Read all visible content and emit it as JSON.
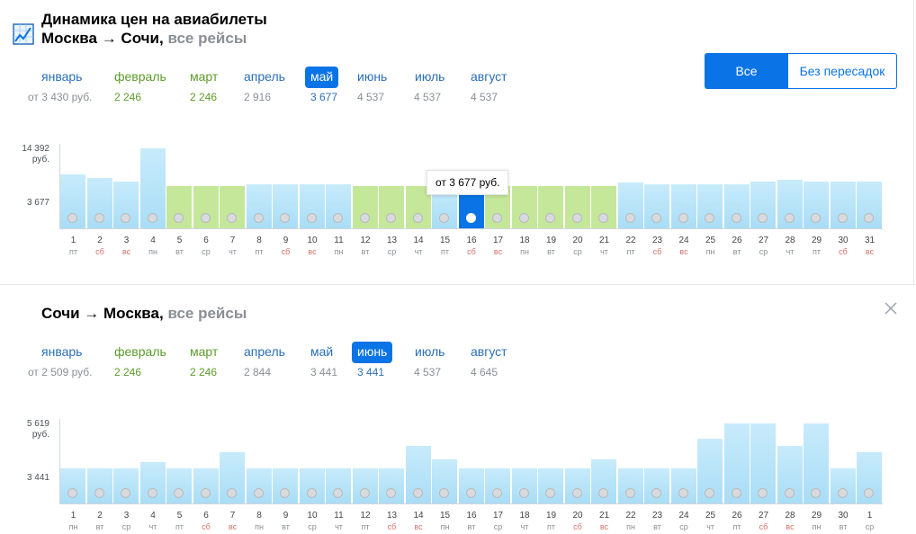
{
  "header": {
    "title": "Динамика цен на авиабилеты",
    "route1": "Москва → Сочи,",
    "route1_suffix": "все рейсы",
    "logo_icon": "chart-icon"
  },
  "filter": {
    "all_flights": "Все рейсы",
    "nonstop": "Без пересадок"
  },
  "section1": {
    "months": [
      {
        "label": "январь",
        "price": "от 3 430 руб.",
        "color": "blue",
        "price_color": "gray"
      },
      {
        "label": "февраль",
        "price": "2 246",
        "color": "green",
        "price_color": "green"
      },
      {
        "label": "март",
        "price": "2 246",
        "color": "green",
        "price_color": "green"
      },
      {
        "label": "апрель",
        "price": "2 916",
        "color": "blue",
        "price_color": "gray"
      },
      {
        "label": "май",
        "price": "3 677",
        "color": "sel",
        "price_color": "blue"
      },
      {
        "label": "июнь",
        "price": "4 537",
        "color": "blue",
        "price_color": "gray"
      },
      {
        "label": "июль",
        "price": "4 537",
        "color": "blue",
        "price_color": "gray"
      },
      {
        "label": "август",
        "price": "4 537",
        "color": "blue",
        "price_color": "gray"
      }
    ],
    "y_max_label": "14 392",
    "y_unit": "руб.",
    "y_min_label": "3 677",
    "tooltip": "от 3 677 руб."
  },
  "section2": {
    "route": "Сочи → Москва,",
    "route_suffix": "все рейсы",
    "close_icon": "close-icon",
    "months": [
      {
        "label": "январь",
        "price": "от 2 509 руб.",
        "color": "blue",
        "price_color": "gray"
      },
      {
        "label": "февраль",
        "price": "2 246",
        "color": "green",
        "price_color": "green"
      },
      {
        "label": "март",
        "price": "2 246",
        "color": "green",
        "price_color": "green"
      },
      {
        "label": "апрель",
        "price": "2 844",
        "color": "blue",
        "price_color": "gray"
      },
      {
        "label": "май",
        "price": "3 441",
        "color": "blue",
        "price_color": "gray"
      },
      {
        "label": "июнь",
        "price": "3 441",
        "color": "sel",
        "price_color": "blue"
      },
      {
        "label": "июль",
        "price": "4 537",
        "color": "blue",
        "price_color": "gray"
      },
      {
        "label": "август",
        "price": "4 645",
        "color": "blue",
        "price_color": "gray"
      }
    ],
    "y_max_label": "5 619",
    "y_unit": "руб.",
    "y_min_label": "3 441"
  },
  "chart_data": [
    {
      "type": "bar",
      "ylim": [
        3677,
        14392
      ],
      "selected_day": "16",
      "days": [
        "1",
        "2",
        "3",
        "4",
        "5",
        "6",
        "7",
        "8",
        "9",
        "10",
        "11",
        "12",
        "13",
        "14",
        "15",
        "16",
        "17",
        "18",
        "19",
        "20",
        "21",
        "22",
        "23",
        "24",
        "25",
        "26",
        "27",
        "28",
        "29",
        "30",
        "31"
      ],
      "weekdays": [
        "пт",
        "сб",
        "вс",
        "пн",
        "вт",
        "ср",
        "чт",
        "пт",
        "сб",
        "вс",
        "пн",
        "вт",
        "ср",
        "чт",
        "пт",
        "сб",
        "вс",
        "пн",
        "вт",
        "ср",
        "чт",
        "пт",
        "сб",
        "вс",
        "пн",
        "вт",
        "ср",
        "чт",
        "пт",
        "сб",
        "вс"
      ],
      "values": [
        9200,
        8500,
        7700,
        14392,
        6900,
        6900,
        6900,
        7200,
        7200,
        7200,
        7200,
        6900,
        6900,
        6900,
        7200,
        6900,
        6900,
        6900,
        6900,
        6900,
        6900,
        7600,
        7200,
        7200,
        7200,
        7200,
        7700,
        8200,
        7700,
        7700,
        7700
      ],
      "colors": [
        "blue",
        "blue",
        "blue",
        "blue",
        "green",
        "green",
        "green",
        "blue",
        "blue",
        "blue",
        "blue",
        "green",
        "green",
        "green",
        "blue",
        "sel",
        "green",
        "green",
        "green",
        "green",
        "green",
        "blue",
        "blue",
        "blue",
        "blue",
        "blue",
        "blue",
        "blue",
        "blue",
        "blue",
        "blue"
      ]
    },
    {
      "type": "bar",
      "ylim": [
        3441,
        5619
      ],
      "days": [
        "1",
        "2",
        "3",
        "4",
        "5",
        "6",
        "7",
        "8",
        "9",
        "10",
        "11",
        "12",
        "13",
        "14",
        "15",
        "16",
        "17",
        "18",
        "19",
        "20",
        "21",
        "22",
        "23",
        "24",
        "25",
        "26",
        "27",
        "28",
        "29",
        "30",
        "1"
      ],
      "weekdays": [
        "пн",
        "вт",
        "ср",
        "чт",
        "пт",
        "сб",
        "вс",
        "пн",
        "вт",
        "ср",
        "чт",
        "пт",
        "сб",
        "вс",
        "пн",
        "вт",
        "ср",
        "чт",
        "пт",
        "сб",
        "вс",
        "пн",
        "вт",
        "ср",
        "чт",
        "пт",
        "сб",
        "вс",
        "пн",
        "вт",
        "ср"
      ],
      "values": [
        3800,
        3800,
        3800,
        4060,
        3800,
        3800,
        4460,
        3800,
        3800,
        3800,
        3800,
        3800,
        3800,
        4700,
        4160,
        3800,
        3800,
        3800,
        3800,
        3800,
        4160,
        3800,
        3800,
        3800,
        5000,
        5619,
        5619,
        4700,
        5619,
        3800,
        4460
      ],
      "colors": [
        "blue",
        "blue",
        "blue",
        "blue",
        "blue",
        "blue",
        "blue",
        "blue",
        "blue",
        "blue",
        "blue",
        "blue",
        "blue",
        "blue",
        "blue",
        "blue",
        "blue",
        "blue",
        "blue",
        "blue",
        "blue",
        "blue",
        "blue",
        "blue",
        "blue",
        "blue",
        "blue",
        "blue",
        "blue",
        "blue",
        "blue"
      ]
    }
  ]
}
